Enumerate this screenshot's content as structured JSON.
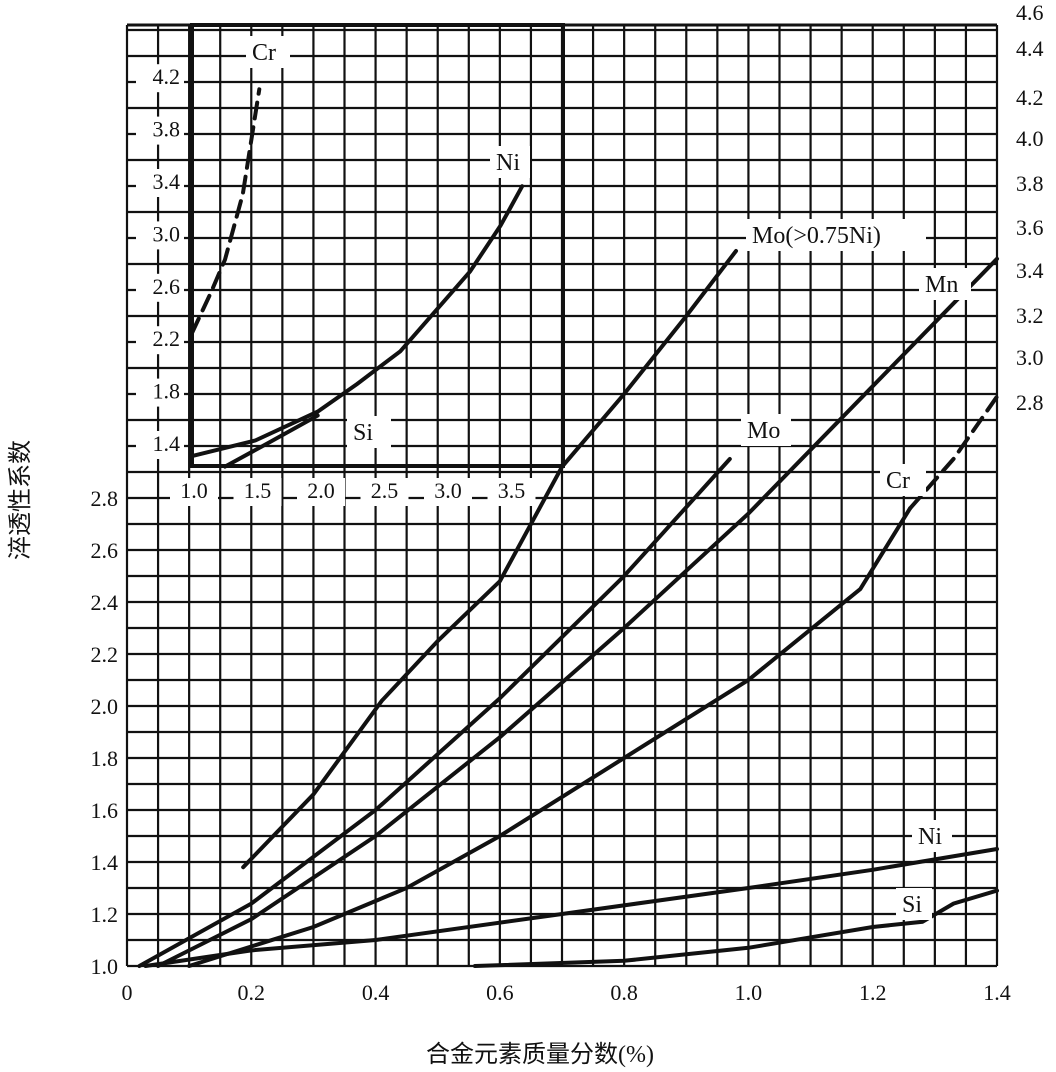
{
  "chart_data": {
    "type": "line",
    "title": "",
    "xlabel": "合金元素质量分数(%)",
    "ylabel": "淬透性系数",
    "xlim": [
      0,
      1.4
    ],
    "ylim": [
      1.0,
      4.6
    ],
    "grid": true,
    "x_ticks": [
      "0",
      "0.2",
      "0.4",
      "0.6",
      "0.8",
      "1.0",
      "1.2",
      "1.4"
    ],
    "x_tick_values": [
      0,
      0.2,
      0.4,
      0.6,
      0.8,
      1.0,
      1.2,
      1.4
    ],
    "y_ticks_left": [
      "1.0",
      "1.2",
      "1.4",
      "1.6",
      "1.8",
      "2.0",
      "2.2",
      "2.4",
      "2.6",
      "2.8"
    ],
    "y_tick_values_left": [
      1.0,
      1.2,
      1.4,
      1.6,
      1.8,
      2.0,
      2.2,
      2.4,
      2.6,
      2.8
    ],
    "y_ticks_right": [
      "4.6",
      "4.4",
      "4.2",
      "4.0",
      "3.8",
      "3.6",
      "3.4",
      "3.2",
      "3.0",
      "2.8"
    ],
    "series": [
      {
        "name": "Mo(>0.75Ni)",
        "dashed": false,
        "x": [
          0.187,
          0.3,
          0.41,
          0.5,
          0.6,
          0.7,
          0.8,
          0.9,
          0.98
        ],
        "y": [
          1.38,
          1.66,
          2.02,
          2.25,
          2.48,
          2.92,
          3.2,
          3.5,
          3.75
        ]
      },
      {
        "name": "Mo",
        "dashed": false,
        "x": [
          0.02,
          0.2,
          0.4,
          0.6,
          0.8,
          0.97
        ],
        "y": [
          1.0,
          1.24,
          1.6,
          2.03,
          2.5,
          2.95
        ]
      },
      {
        "name": "Mn",
        "dashed": false,
        "x": [
          0.05,
          0.2,
          0.4,
          0.6,
          0.8,
          1.0,
          1.2,
          1.4
        ],
        "y": [
          1.0,
          1.18,
          1.5,
          1.88,
          2.3,
          2.74,
          3.23,
          3.72
        ]
      },
      {
        "name": "Cr",
        "dashed": false,
        "x": [
          0.1,
          0.3,
          0.45,
          0.6,
          0.8,
          1.0,
          1.18,
          1.26
        ],
        "y": [
          1.0,
          1.15,
          1.3,
          1.5,
          1.8,
          2.1,
          2.45,
          2.76
        ]
      },
      {
        "name": "Cr",
        "dashed": true,
        "x": [
          1.26,
          1.33,
          1.4
        ],
        "y": [
          2.76,
          2.95,
          3.19
        ]
      },
      {
        "name": "Ni",
        "dashed": false,
        "x": [
          0.03,
          0.2,
          0.4,
          0.7,
          1.0,
          1.2,
          1.4
        ],
        "y": [
          1.0,
          1.06,
          1.1,
          1.2,
          1.3,
          1.37,
          1.45
        ]
      },
      {
        "name": "Si",
        "dashed": false,
        "x": [
          0.56,
          0.8,
          1.0,
          1.2,
          1.28,
          1.33,
          1.4
        ],
        "y": [
          1.0,
          1.02,
          1.07,
          1.15,
          1.17,
          1.24,
          1.29
        ]
      }
    ],
    "inset": {
      "x_ticks": [
        "1.0",
        "1.5",
        "2.0",
        "2.5",
        "3.0",
        "3.5"
      ],
      "y_ticks": [
        "1.4",
        "1.8",
        "2.2",
        "2.6",
        "3.0",
        "3.4",
        "3.8",
        "4.2"
      ],
      "series": [
        {
          "name": "Cr",
          "dashed": true,
          "x": [
            1.0,
            1.15,
            1.26,
            1.4,
            1.53
          ],
          "y": [
            2.24,
            2.55,
            2.8,
            3.3,
            4.1
          ]
        },
        {
          "name": "Ni",
          "dashed": false,
          "x": [
            1.0,
            1.5,
            1.99,
            2.3,
            2.64,
            3.19,
            3.43,
            3.6
          ],
          "y": [
            1.3,
            1.42,
            1.64,
            1.85,
            2.1,
            2.71,
            3.06,
            3.36
          ]
        },
        {
          "name": "Si",
          "dashed": false,
          "x": [
            1.26,
            1.6,
            1.99
          ],
          "y": [
            1.22,
            1.4,
            1.61
          ]
        }
      ]
    }
  }
}
